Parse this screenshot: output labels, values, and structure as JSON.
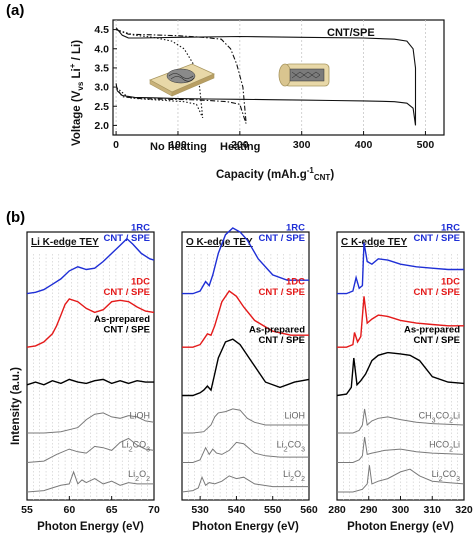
{
  "panel_labels": {
    "a": "(a)",
    "b": "(b)"
  },
  "colors": {
    "rc": "#1f2fd6",
    "dc": "#e41a1a",
    "prep": "#000000",
    "ref": "#7a7a7a",
    "grid": "#c8c8c8"
  },
  "chart_data": [
    {
      "type": "line",
      "panel": "(a)",
      "xlabel": "Capacity (mAh.g",
      "xlabel_sup": "-1",
      "xlabel_sub": "CNT",
      "xlabel_close": ")",
      "ylabel": "Voltage (V",
      "ylabel_sub": "vs",
      "ylabel_mid": " Li",
      "ylabel_sup": "+",
      "ylabel_close": " / Li)",
      "xlim": [
        -5,
        530
      ],
      "ylim": [
        1.75,
        4.75
      ],
      "xticks": [
        0,
        100,
        200,
        300,
        400,
        500
      ],
      "yticks": [
        2.0,
        2.5,
        3.0,
        3.5,
        4.0,
        4.5
      ],
      "annotations": [
        "CNT/SPE",
        "No heating",
        "Heating"
      ],
      "series": [
        {
          "label": "CNT/SPE",
          "style": "solid",
          "x": [
            0,
            5,
            10,
            20,
            40,
            100,
            200,
            300,
            400,
            450,
            470,
            480,
            484,
            484,
            480,
            470,
            450,
            430,
            400,
            350,
            300,
            250,
            200,
            150,
            100,
            60,
            30,
            10,
            2,
            0
          ],
          "y": [
            4.55,
            4.45,
            4.35,
            4.28,
            4.28,
            4.3,
            4.32,
            4.3,
            4.28,
            4.25,
            4.2,
            4.0,
            3.5,
            2.0,
            2.45,
            2.58,
            2.62,
            2.63,
            2.64,
            2.65,
            2.66,
            2.67,
            2.68,
            2.69,
            2.7,
            2.72,
            2.73,
            2.78,
            2.9,
            3.1
          ]
        },
        {
          "label": "Heating",
          "style": "dashdot",
          "x": [
            0,
            20,
            60,
            100,
            140,
            170,
            185,
            195,
            205,
            210,
            210,
            200,
            180,
            150,
            120,
            80,
            40,
            10,
            0
          ],
          "y": [
            4.5,
            4.38,
            4.36,
            4.34,
            4.3,
            4.25,
            4.0,
            3.6,
            3.0,
            2.1,
            2.05,
            2.55,
            2.62,
            2.65,
            2.67,
            2.68,
            2.7,
            2.75,
            3.0
          ]
        },
        {
          "label": "No heating",
          "style": "dotted",
          "x": [
            0,
            30,
            60,
            90,
            110,
            125,
            135,
            140,
            140,
            130,
            110,
            80,
            50,
            20,
            0
          ],
          "y": [
            4.5,
            4.35,
            4.3,
            4.2,
            4.0,
            3.6,
            3.0,
            2.2,
            2.2,
            2.55,
            2.62,
            2.65,
            2.68,
            2.72,
            3.0
          ]
        }
      ]
    },
    {
      "type": "line",
      "panel": "(b)",
      "title": "Li K-edge TEY",
      "xlabel": "Photon Energy (eV)",
      "ylabel": "Intensity (a.u.)",
      "xlim": [
        55,
        70
      ],
      "xticks": [
        55,
        60,
        65,
        70
      ],
      "series": [
        {
          "name": "1RC\nCNT / SPE",
          "color": "rc",
          "offset": 7.4,
          "x": [
            55,
            56,
            57,
            58,
            59,
            60,
            61,
            62,
            63,
            64,
            65,
            66,
            66.8,
            67.5,
            68.5,
            69.5,
            70
          ],
          "y": [
            0.0,
            0.05,
            0.15,
            0.35,
            0.55,
            0.85,
            1.0,
            0.9,
            0.95,
            1.2,
            1.5,
            1.8,
            2.05,
            1.85,
            1.5,
            1.3,
            1.25
          ]
        },
        {
          "name": "1DC\nCNT / SPE",
          "color": "dc",
          "offset": 5.4,
          "x": [
            55,
            56,
            57,
            58,
            58.5,
            59,
            59.5,
            60,
            61,
            62,
            63,
            64,
            65,
            66,
            67,
            68,
            69,
            70
          ],
          "y": [
            0.0,
            0.05,
            0.2,
            0.5,
            0.8,
            1.2,
            1.6,
            1.8,
            1.7,
            1.45,
            1.3,
            1.4,
            1.7,
            1.75,
            1.7,
            1.5,
            1.35,
            1.3
          ]
        },
        {
          "name": "As-prepared\nCNT / SPE",
          "color": "prep",
          "offset": 4.0,
          "x": [
            55,
            56,
            57,
            58,
            59,
            60,
            61,
            62,
            63,
            64,
            65,
            66,
            67,
            68,
            69,
            70
          ],
          "y": [
            0.0,
            0.1,
            0.0,
            0.15,
            0.05,
            0.2,
            0.1,
            0.05,
            0.15,
            0.2,
            0.05,
            0.15,
            0.05,
            0.15,
            0.1,
            0.1
          ]
        },
        {
          "name": "LiOH",
          "color": "ref",
          "offset": 2.2,
          "x": [
            55,
            57,
            59,
            61,
            62,
            63,
            64,
            65,
            66,
            67,
            68,
            69,
            70
          ],
          "y": [
            0.0,
            0.0,
            0.05,
            0.2,
            0.5,
            0.7,
            0.75,
            0.6,
            0.55,
            0.65,
            0.6,
            0.45,
            0.4
          ]
        },
        {
          "name": "Li2CO3",
          "color": "ref",
          "offset": 1.1,
          "x": [
            55,
            57,
            58.5,
            60,
            61,
            62,
            63,
            64,
            65,
            66,
            67,
            68,
            69,
            70
          ],
          "y": [
            0.0,
            0.05,
            0.3,
            0.5,
            0.4,
            0.35,
            0.6,
            0.55,
            0.45,
            0.75,
            0.9,
            0.65,
            0.5,
            0.45
          ]
        },
        {
          "name": "Li2O2",
          "color": "ref",
          "offset": 0.0,
          "x": [
            55,
            57,
            58,
            59,
            60,
            60.5,
            61,
            61.5,
            62,
            63,
            64,
            65,
            66,
            67,
            68,
            70
          ],
          "y": [
            0.0,
            0.05,
            0.15,
            0.25,
            0.3,
            0.75,
            0.3,
            0.45,
            0.35,
            0.5,
            0.3,
            0.4,
            0.25,
            0.35,
            0.3,
            0.3
          ]
        }
      ]
    },
    {
      "type": "line",
      "panel": "(b)",
      "title": "O K-edge TEY",
      "xlabel": "Photon Energy (eV)",
      "xlim": [
        525,
        560
      ],
      "xticks": [
        530,
        540,
        550,
        560
      ],
      "series": [
        {
          "name": "1RC\nCNT / SPE",
          "color": "rc",
          "offset": 7.4,
          "x": [
            525,
            528,
            530,
            531.5,
            532.5,
            533.5,
            535,
            537,
            539,
            541,
            543,
            546,
            550,
            554,
            560
          ],
          "y": [
            0.0,
            0.0,
            0.1,
            0.45,
            0.3,
            0.7,
            1.5,
            2.2,
            2.45,
            2.3,
            2.0,
            1.3,
            0.7,
            0.5,
            0.5
          ]
        },
        {
          "name": "1DC\nCNT / SPE",
          "color": "dc",
          "offset": 5.4,
          "x": [
            525,
            528,
            530,
            531,
            532,
            533,
            534,
            536,
            538,
            540,
            542,
            545,
            550,
            555,
            560
          ],
          "y": [
            0.0,
            0.0,
            0.1,
            0.3,
            0.5,
            0.45,
            0.8,
            1.7,
            2.1,
            1.9,
            1.5,
            1.0,
            0.6,
            0.45,
            0.45
          ]
        },
        {
          "name": "As-prepared\nCNT / SPE",
          "color": "prep",
          "offset": 3.6,
          "x": [
            525,
            528,
            530,
            531,
            532,
            533,
            534,
            535,
            537,
            539,
            541,
            544,
            548,
            552,
            556,
            560
          ],
          "y": [
            0.0,
            0.0,
            0.1,
            0.2,
            0.35,
            0.2,
            0.8,
            1.4,
            2.0,
            2.1,
            1.9,
            1.3,
            0.5,
            0.3,
            0.5,
            0.6
          ]
        },
        {
          "name": "LiOH",
          "color": "ref",
          "offset": 2.2,
          "x": [
            525,
            528,
            531,
            533,
            534,
            535,
            537,
            539,
            541,
            543,
            545,
            548,
            552,
            560
          ],
          "y": [
            0.0,
            0.0,
            0.05,
            0.3,
            0.6,
            0.75,
            0.8,
            0.9,
            0.85,
            0.55,
            0.4,
            0.3,
            0.3,
            0.3
          ]
        },
        {
          "name": "Li2CO3",
          "color": "ref",
          "offset": 1.1,
          "x": [
            525,
            528,
            530,
            531.5,
            532.5,
            533.5,
            534.5,
            536,
            538,
            540,
            542,
            545,
            548,
            552,
            560
          ],
          "y": [
            0.0,
            0.0,
            0.1,
            0.55,
            0.3,
            0.5,
            0.35,
            0.3,
            0.45,
            0.75,
            0.7,
            0.35,
            0.25,
            0.2,
            0.2
          ]
        },
        {
          "name": "Li2O2",
          "color": "ref",
          "offset": 0.0,
          "x": [
            525,
            528,
            529.5,
            530.5,
            531.5,
            532.5,
            534,
            536,
            538,
            540,
            542,
            545,
            550,
            560
          ],
          "y": [
            0.0,
            0.05,
            0.15,
            0.55,
            0.25,
            0.35,
            0.3,
            0.4,
            0.6,
            0.5,
            0.55,
            0.3,
            0.2,
            0.2
          ]
        }
      ]
    },
    {
      "type": "line",
      "panel": "(b)",
      "title": "C K-edge TEY",
      "xlabel": "Photon Energy (eV)",
      "xlim": [
        280,
        320
      ],
      "xticks": [
        280,
        290,
        300,
        310,
        320
      ],
      "series": [
        {
          "name": "1RC\nCNT / SPE",
          "color": "rc",
          "offset": 7.4,
          "x": [
            280,
            283,
            285,
            286,
            287,
            288,
            288.5,
            289.5,
            291,
            293,
            296,
            300,
            305,
            310,
            315,
            320
          ],
          "y": [
            0.0,
            0.0,
            0.1,
            0.6,
            0.2,
            0.3,
            1.9,
            1.2,
            1.1,
            1.3,
            1.25,
            1.1,
            1.0,
            0.95,
            0.9,
            0.9
          ]
        },
        {
          "name": "1DC\nCNT / SPE",
          "color": "dc",
          "offset": 5.4,
          "x": [
            280,
            283,
            285,
            285.5,
            286.5,
            287.5,
            288.5,
            289.5,
            291,
            293,
            296,
            300,
            305,
            310,
            315,
            320
          ],
          "y": [
            0.0,
            0.0,
            0.1,
            0.55,
            0.2,
            0.4,
            1.9,
            0.9,
            1.05,
            1.2,
            1.15,
            1.0,
            0.9,
            0.85,
            0.8,
            0.8
          ]
        },
        {
          "name": "As-prepared\nCNT / SPE",
          "color": "prep",
          "offset": 3.6,
          "x": [
            280,
            283,
            284.5,
            285.3,
            286.3,
            287.5,
            289,
            291,
            293,
            296,
            300,
            303,
            306,
            310,
            315,
            320
          ],
          "y": [
            0.0,
            0.05,
            0.3,
            1.4,
            0.4,
            0.55,
            0.8,
            1.3,
            1.5,
            1.6,
            1.55,
            1.5,
            1.3,
            0.7,
            0.5,
            0.45
          ]
        },
        {
          "name": "CH3CO2Li",
          "color": "ref",
          "offset": 2.2,
          "x": [
            280,
            285,
            287,
            288,
            288.7,
            289.5,
            291,
            293,
            296,
            300,
            305,
            310,
            320
          ],
          "y": [
            0.0,
            0.0,
            0.1,
            0.3,
            0.9,
            0.3,
            0.45,
            0.55,
            0.6,
            0.5,
            0.4,
            0.35,
            0.3
          ]
        },
        {
          "name": "HCO2Li",
          "color": "ref",
          "offset": 1.1,
          "x": [
            280,
            285,
            287,
            288,
            288.7,
            289.5,
            291,
            295,
            300,
            305,
            310,
            320
          ],
          "y": [
            0.0,
            0.0,
            0.1,
            0.25,
            0.95,
            0.3,
            0.35,
            0.45,
            0.5,
            0.4,
            0.35,
            0.3
          ]
        },
        {
          "name": "Li2CO3",
          "color": "ref",
          "offset": 0.0,
          "x": [
            280,
            285,
            288,
            289.5,
            290.2,
            291,
            293,
            296,
            300,
            303,
            306,
            310,
            315,
            320
          ],
          "y": [
            0.0,
            0.0,
            0.1,
            0.3,
            1.0,
            0.3,
            0.4,
            0.5,
            0.75,
            0.85,
            0.6,
            0.4,
            0.35,
            0.3
          ]
        }
      ]
    }
  ]
}
